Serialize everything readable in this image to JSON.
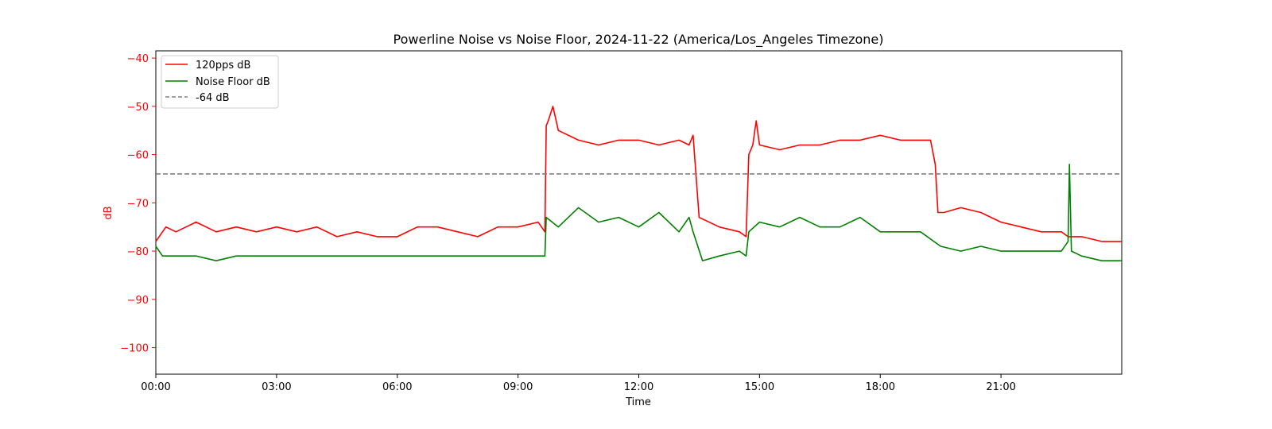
{
  "chart_data": {
    "type": "line",
    "title": "Powerline Noise vs Noise Floor, 2024-11-22 (America/Los_Angeles Timezone)",
    "xlabel": "Time",
    "ylabel": "dB",
    "xlim": [
      "00:00",
      "24:00"
    ],
    "ylim": [
      -105.5,
      -38.5
    ],
    "x_ticks": [
      "00:00",
      "03:00",
      "06:00",
      "09:00",
      "12:00",
      "15:00",
      "18:00",
      "21:00"
    ],
    "y_ticks": [
      -40,
      -50,
      -60,
      -70,
      -80,
      -90,
      -100
    ],
    "grid": false,
    "legend_position": "top-left",
    "ylabel_color": "#ff0000",
    "series": [
      {
        "name": "120pps dB",
        "color": "#ff0000",
        "style": "solid",
        "x": [
          "00:00",
          "00:15",
          "00:30",
          "00:45",
          "01:00",
          "01:30",
          "02:00",
          "02:30",
          "03:00",
          "03:30",
          "04:00",
          "04:30",
          "05:00",
          "05:30",
          "06:00",
          "06:30",
          "07:00",
          "07:30",
          "08:00",
          "08:30",
          "09:00",
          "09:30",
          "09:40",
          "09:42",
          "09:45",
          "09:52",
          "10:00",
          "10:30",
          "11:00",
          "11:30",
          "12:00",
          "12:30",
          "13:00",
          "13:15",
          "13:21",
          "13:30",
          "14:00",
          "14:30",
          "14:40",
          "14:44",
          "14:50",
          "14:55",
          "15:00",
          "15:30",
          "16:00",
          "16:30",
          "17:00",
          "17:30",
          "18:00",
          "18:30",
          "19:00",
          "19:15",
          "19:22",
          "19:26",
          "19:35",
          "20:00",
          "20:30",
          "21:00",
          "21:30",
          "22:00",
          "22:30",
          "22:40",
          "22:50",
          "23:00",
          "23:30",
          "24:00"
        ],
        "y": [
          -78,
          -75,
          -76,
          -75,
          -74,
          -76,
          -75,
          -76,
          -75,
          -76,
          -75,
          -77,
          -76,
          -77,
          -77,
          -75,
          -75,
          -76,
          -77,
          -75,
          -75,
          -74,
          -76,
          -54,
          -53,
          -50,
          -55,
          -57,
          -58,
          -57,
          -57,
          -58,
          -57,
          -58,
          -56,
          -73,
          -75,
          -76,
          -77,
          -60,
          -58,
          -53,
          -58,
          -59,
          -58,
          -58,
          -57,
          -57,
          -56,
          -57,
          -57,
          -57,
          -62,
          -72,
          -72,
          -71,
          -72,
          -74,
          -75,
          -76,
          -76,
          -77,
          -77,
          -77,
          -78,
          -78
        ]
      },
      {
        "name": "Noise Floor dB",
        "color": "#008000",
        "style": "solid",
        "x": [
          "00:00",
          "00:10",
          "00:45",
          "01:00",
          "01:30",
          "02:00",
          "03:00",
          "04:00",
          "05:00",
          "06:00",
          "07:00",
          "08:00",
          "09:00",
          "09:40",
          "09:42",
          "10:00",
          "10:30",
          "11:00",
          "11:30",
          "12:00",
          "12:30",
          "13:00",
          "13:15",
          "13:21",
          "13:35",
          "14:00",
          "14:30",
          "14:40",
          "14:44",
          "15:00",
          "15:30",
          "16:00",
          "16:30",
          "17:00",
          "17:30",
          "18:00",
          "18:30",
          "19:00",
          "19:30",
          "20:00",
          "20:30",
          "21:00",
          "21:30",
          "22:00",
          "22:30",
          "22:40",
          "22:42",
          "22:45",
          "23:00",
          "23:30",
          "24:00"
        ],
        "y": [
          -79,
          -81,
          -81,
          -81,
          -82,
          -81,
          -81,
          -81,
          -81,
          -81,
          -81,
          -81,
          -81,
          -81,
          -73,
          -75,
          -71,
          -74,
          -73,
          -75,
          -72,
          -76,
          -73,
          -76,
          -82,
          -81,
          -80,
          -81,
          -76,
          -74,
          -75,
          -73,
          -75,
          -75,
          -73,
          -76,
          -76,
          -76,
          -79,
          -80,
          -79,
          -80,
          -80,
          -80,
          -80,
          -78,
          -62,
          -80,
          -81,
          -82,
          -82
        ]
      },
      {
        "name": "-64 dB",
        "color": "#808080",
        "style": "dashed",
        "x": [
          "00:00",
          "24:00"
        ],
        "y": [
          -64,
          -64
        ]
      }
    ]
  }
}
